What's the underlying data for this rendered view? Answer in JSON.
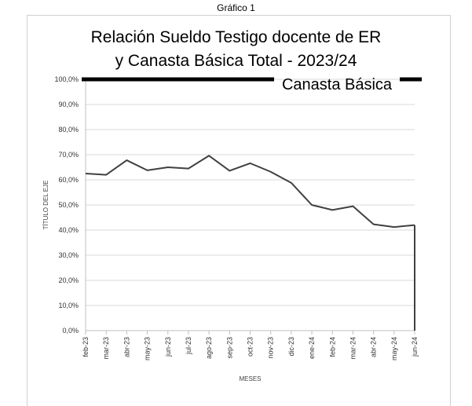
{
  "figure_caption": "Gráfico 1",
  "chart_data": {
    "type": "line",
    "title_lines": [
      "Relación Sueldo Testigo docente de ER",
      "y Canasta Básica Total - 2023/24"
    ],
    "xlabel": "MESES",
    "ylabel": "TÍTULO DEL EJE",
    "categories": [
      "feb-23",
      "mar-23",
      "abr-23",
      "may-23",
      "jun-23",
      "jul-23",
      "ago-23",
      "sep-23",
      "oct-23",
      "nov-23",
      "dic-23",
      "ene-24",
      "feb-24",
      "mar-24",
      "abr-24",
      "may-24",
      "jun-24"
    ],
    "series": [
      {
        "values": [
          62.5,
          62.0,
          67.8,
          63.8,
          65.0,
          64.5,
          69.6,
          63.6,
          66.6,
          63.2,
          58.8,
          50.0,
          48.0,
          49.5,
          42.3,
          41.2,
          42.0
        ],
        "color": "#404040"
      }
    ],
    "reference_line": {
      "value": 100,
      "label": "Canasta Básica",
      "color": "#000000"
    },
    "ylim": [
      0,
      100
    ],
    "yticks": [
      "0,0%",
      "10,0%",
      "20,0%",
      "30,0%",
      "40,0%",
      "50,0%",
      "60,0%",
      "70,0%",
      "80,0%",
      "90,0%",
      "100,0%"
    ],
    "grid": "horizontal",
    "legend": "none"
  }
}
